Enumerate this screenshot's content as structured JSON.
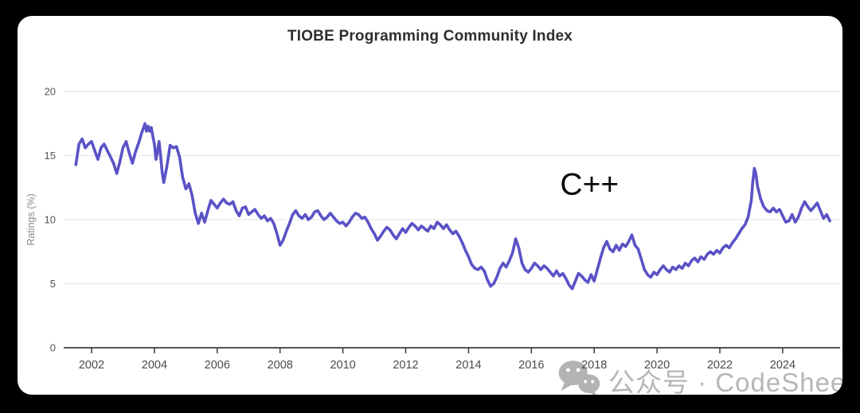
{
  "app": {
    "background_color": "#000000",
    "card_color": "#ffffff"
  },
  "chart_data": {
    "type": "line",
    "title": "TIOBE Programming Community Index",
    "xlabel": "",
    "ylabel": "Ratings (%)",
    "ylim": [
      0,
      20
    ],
    "xlim": [
      2001.0,
      2025.9
    ],
    "yticks": [
      0,
      5,
      10,
      15,
      20
    ],
    "xticks": [
      2002,
      2004,
      2006,
      2008,
      2010,
      2012,
      2014,
      2016,
      2018,
      2020,
      2022,
      2024
    ],
    "grid": "horizontal-only",
    "legend_position": "none",
    "annotation": {
      "text": "C++",
      "x": 2017.85,
      "y": 12.7
    },
    "colors": {
      "line": "#5a52c6",
      "grid": "#ececec",
      "axis": "#3c3c3c",
      "tick_label": "#4a4a4a",
      "title": "#2e2e2e",
      "axis_label": "#8a8a8a"
    },
    "series": [
      {
        "name": "C++",
        "color": "#5a52c6",
        "points": [
          [
            2001.5,
            14.3
          ],
          [
            2001.6,
            15.9
          ],
          [
            2001.7,
            16.3
          ],
          [
            2001.8,
            15.6
          ],
          [
            2001.9,
            15.9
          ],
          [
            2002.0,
            16.1
          ],
          [
            2002.1,
            15.4
          ],
          [
            2002.2,
            14.7
          ],
          [
            2002.3,
            15.6
          ],
          [
            2002.4,
            15.9
          ],
          [
            2002.5,
            15.4
          ],
          [
            2002.6,
            14.9
          ],
          [
            2002.7,
            14.4
          ],
          [
            2002.8,
            13.6
          ],
          [
            2002.9,
            14.5
          ],
          [
            2003.0,
            15.6
          ],
          [
            2003.1,
            16.1
          ],
          [
            2003.2,
            15.2
          ],
          [
            2003.3,
            14.4
          ],
          [
            2003.4,
            15.3
          ],
          [
            2003.5,
            16.0
          ],
          [
            2003.6,
            16.8
          ],
          [
            2003.7,
            17.5
          ],
          [
            2003.75,
            16.9
          ],
          [
            2003.8,
            17.3
          ],
          [
            2003.85,
            16.9
          ],
          [
            2003.9,
            17.2
          ],
          [
            2003.95,
            16.5
          ],
          [
            2004.0,
            15.9
          ],
          [
            2004.05,
            14.7
          ],
          [
            2004.1,
            15.3
          ],
          [
            2004.15,
            16.1
          ],
          [
            2004.2,
            14.9
          ],
          [
            2004.25,
            13.6
          ],
          [
            2004.3,
            12.9
          ],
          [
            2004.4,
            14.2
          ],
          [
            2004.5,
            15.8
          ],
          [
            2004.6,
            15.6
          ],
          [
            2004.7,
            15.7
          ],
          [
            2004.8,
            14.9
          ],
          [
            2004.9,
            13.3
          ],
          [
            2005.0,
            12.4
          ],
          [
            2005.1,
            12.8
          ],
          [
            2005.2,
            11.9
          ],
          [
            2005.3,
            10.5
          ],
          [
            2005.4,
            9.7
          ],
          [
            2005.5,
            10.5
          ],
          [
            2005.6,
            9.8
          ],
          [
            2005.7,
            10.7
          ],
          [
            2005.8,
            11.5
          ],
          [
            2005.9,
            11.2
          ],
          [
            2006.0,
            10.9
          ],
          [
            2006.1,
            11.3
          ],
          [
            2006.2,
            11.6
          ],
          [
            2006.3,
            11.3
          ],
          [
            2006.4,
            11.2
          ],
          [
            2006.5,
            11.4
          ],
          [
            2006.6,
            10.7
          ],
          [
            2006.7,
            10.3
          ],
          [
            2006.8,
            10.9
          ],
          [
            2006.9,
            11.0
          ],
          [
            2007.0,
            10.4
          ],
          [
            2007.1,
            10.6
          ],
          [
            2007.2,
            10.8
          ],
          [
            2007.3,
            10.4
          ],
          [
            2007.4,
            10.1
          ],
          [
            2007.5,
            10.3
          ],
          [
            2007.6,
            9.9
          ],
          [
            2007.7,
            10.1
          ],
          [
            2007.8,
            9.7
          ],
          [
            2007.9,
            8.9
          ],
          [
            2008.0,
            8.0
          ],
          [
            2008.1,
            8.4
          ],
          [
            2008.2,
            9.1
          ],
          [
            2008.3,
            9.7
          ],
          [
            2008.4,
            10.4
          ],
          [
            2008.5,
            10.7
          ],
          [
            2008.6,
            10.3
          ],
          [
            2008.7,
            10.1
          ],
          [
            2008.8,
            10.4
          ],
          [
            2008.9,
            10.0
          ],
          [
            2009.0,
            10.2
          ],
          [
            2009.1,
            10.6
          ],
          [
            2009.2,
            10.7
          ],
          [
            2009.3,
            10.3
          ],
          [
            2009.4,
            10.0
          ],
          [
            2009.5,
            10.2
          ],
          [
            2009.6,
            10.5
          ],
          [
            2009.7,
            10.2
          ],
          [
            2009.8,
            9.9
          ],
          [
            2009.9,
            9.7
          ],
          [
            2010.0,
            9.8
          ],
          [
            2010.1,
            9.5
          ],
          [
            2010.2,
            9.8
          ],
          [
            2010.3,
            10.2
          ],
          [
            2010.4,
            10.5
          ],
          [
            2010.5,
            10.4
          ],
          [
            2010.6,
            10.1
          ],
          [
            2010.7,
            10.2
          ],
          [
            2010.8,
            9.8
          ],
          [
            2010.9,
            9.3
          ],
          [
            2011.0,
            8.9
          ],
          [
            2011.1,
            8.4
          ],
          [
            2011.2,
            8.7
          ],
          [
            2011.3,
            9.1
          ],
          [
            2011.4,
            9.4
          ],
          [
            2011.5,
            9.2
          ],
          [
            2011.6,
            8.8
          ],
          [
            2011.7,
            8.5
          ],
          [
            2011.8,
            8.9
          ],
          [
            2011.9,
            9.3
          ],
          [
            2012.0,
            9.0
          ],
          [
            2012.1,
            9.4
          ],
          [
            2012.2,
            9.7
          ],
          [
            2012.3,
            9.5
          ],
          [
            2012.4,
            9.2
          ],
          [
            2012.5,
            9.5
          ],
          [
            2012.6,
            9.3
          ],
          [
            2012.7,
            9.1
          ],
          [
            2012.8,
            9.5
          ],
          [
            2012.9,
            9.3
          ],
          [
            2013.0,
            9.8
          ],
          [
            2013.1,
            9.6
          ],
          [
            2013.2,
            9.3
          ],
          [
            2013.3,
            9.6
          ],
          [
            2013.4,
            9.2
          ],
          [
            2013.5,
            8.9
          ],
          [
            2013.6,
            9.1
          ],
          [
            2013.7,
            8.7
          ],
          [
            2013.8,
            8.2
          ],
          [
            2013.9,
            7.6
          ],
          [
            2014.0,
            7.1
          ],
          [
            2014.1,
            6.5
          ],
          [
            2014.2,
            6.2
          ],
          [
            2014.3,
            6.1
          ],
          [
            2014.4,
            6.3
          ],
          [
            2014.5,
            6.0
          ],
          [
            2014.6,
            5.3
          ],
          [
            2014.7,
            4.8
          ],
          [
            2014.8,
            5.0
          ],
          [
            2014.9,
            5.5
          ],
          [
            2015.0,
            6.2
          ],
          [
            2015.1,
            6.6
          ],
          [
            2015.2,
            6.3
          ],
          [
            2015.3,
            6.8
          ],
          [
            2015.4,
            7.4
          ],
          [
            2015.5,
            8.5
          ],
          [
            2015.6,
            7.8
          ],
          [
            2015.7,
            6.6
          ],
          [
            2015.8,
            6.1
          ],
          [
            2015.9,
            5.9
          ],
          [
            2016.0,
            6.2
          ],
          [
            2016.1,
            6.6
          ],
          [
            2016.2,
            6.4
          ],
          [
            2016.3,
            6.1
          ],
          [
            2016.4,
            6.4
          ],
          [
            2016.5,
            6.2
          ],
          [
            2016.6,
            5.9
          ],
          [
            2016.7,
            5.6
          ],
          [
            2016.8,
            6.0
          ],
          [
            2016.9,
            5.6
          ],
          [
            2017.0,
            5.8
          ],
          [
            2017.1,
            5.4
          ],
          [
            2017.2,
            4.9
          ],
          [
            2017.3,
            4.6
          ],
          [
            2017.4,
            5.2
          ],
          [
            2017.5,
            5.8
          ],
          [
            2017.6,
            5.6
          ],
          [
            2017.7,
            5.3
          ],
          [
            2017.8,
            5.1
          ],
          [
            2017.9,
            5.7
          ],
          [
            2018.0,
            5.2
          ],
          [
            2018.1,
            6.1
          ],
          [
            2018.2,
            7.0
          ],
          [
            2018.3,
            7.8
          ],
          [
            2018.4,
            8.3
          ],
          [
            2018.5,
            7.7
          ],
          [
            2018.6,
            7.5
          ],
          [
            2018.7,
            8.0
          ],
          [
            2018.8,
            7.6
          ],
          [
            2018.9,
            8.1
          ],
          [
            2019.0,
            7.9
          ],
          [
            2019.1,
            8.3
          ],
          [
            2019.2,
            8.8
          ],
          [
            2019.3,
            8.0
          ],
          [
            2019.4,
            7.7
          ],
          [
            2019.5,
            6.9
          ],
          [
            2019.6,
            6.1
          ],
          [
            2019.7,
            5.7
          ],
          [
            2019.8,
            5.5
          ],
          [
            2019.9,
            5.9
          ],
          [
            2020.0,
            5.7
          ],
          [
            2020.1,
            6.1
          ],
          [
            2020.2,
            6.4
          ],
          [
            2020.3,
            6.1
          ],
          [
            2020.4,
            5.9
          ],
          [
            2020.5,
            6.3
          ],
          [
            2020.6,
            6.1
          ],
          [
            2020.7,
            6.4
          ],
          [
            2020.8,
            6.2
          ],
          [
            2020.9,
            6.6
          ],
          [
            2021.0,
            6.4
          ],
          [
            2021.1,
            6.8
          ],
          [
            2021.2,
            7.0
          ],
          [
            2021.3,
            6.7
          ],
          [
            2021.4,
            7.1
          ],
          [
            2021.5,
            6.9
          ],
          [
            2021.6,
            7.3
          ],
          [
            2021.7,
            7.5
          ],
          [
            2021.8,
            7.3
          ],
          [
            2021.9,
            7.6
          ],
          [
            2022.0,
            7.4
          ],
          [
            2022.1,
            7.8
          ],
          [
            2022.2,
            8.0
          ],
          [
            2022.3,
            7.8
          ],
          [
            2022.4,
            8.2
          ],
          [
            2022.5,
            8.5
          ],
          [
            2022.6,
            8.9
          ],
          [
            2022.7,
            9.3
          ],
          [
            2022.8,
            9.6
          ],
          [
            2022.9,
            10.2
          ],
          [
            2023.0,
            11.5
          ],
          [
            2023.05,
            13.0
          ],
          [
            2023.1,
            14.0
          ],
          [
            2023.15,
            13.5
          ],
          [
            2023.2,
            12.6
          ],
          [
            2023.3,
            11.6
          ],
          [
            2023.4,
            11.0
          ],
          [
            2023.5,
            10.7
          ],
          [
            2023.6,
            10.6
          ],
          [
            2023.7,
            10.9
          ],
          [
            2023.8,
            10.6
          ],
          [
            2023.9,
            10.8
          ],
          [
            2024.0,
            10.3
          ],
          [
            2024.1,
            9.8
          ],
          [
            2024.2,
            9.9
          ],
          [
            2024.3,
            10.4
          ],
          [
            2024.4,
            9.8
          ],
          [
            2024.5,
            10.2
          ],
          [
            2024.6,
            10.9
          ],
          [
            2024.7,
            11.4
          ],
          [
            2024.8,
            11.0
          ],
          [
            2024.9,
            10.7
          ],
          [
            2025.0,
            11.0
          ],
          [
            2025.1,
            11.3
          ],
          [
            2025.2,
            10.7
          ],
          [
            2025.3,
            10.1
          ],
          [
            2025.4,
            10.4
          ],
          [
            2025.5,
            9.9
          ]
        ]
      }
    ]
  },
  "watermark": {
    "icon": "wechat-icon",
    "text": "公众号 · CodeSheep",
    "color": "#b6b6b6"
  }
}
